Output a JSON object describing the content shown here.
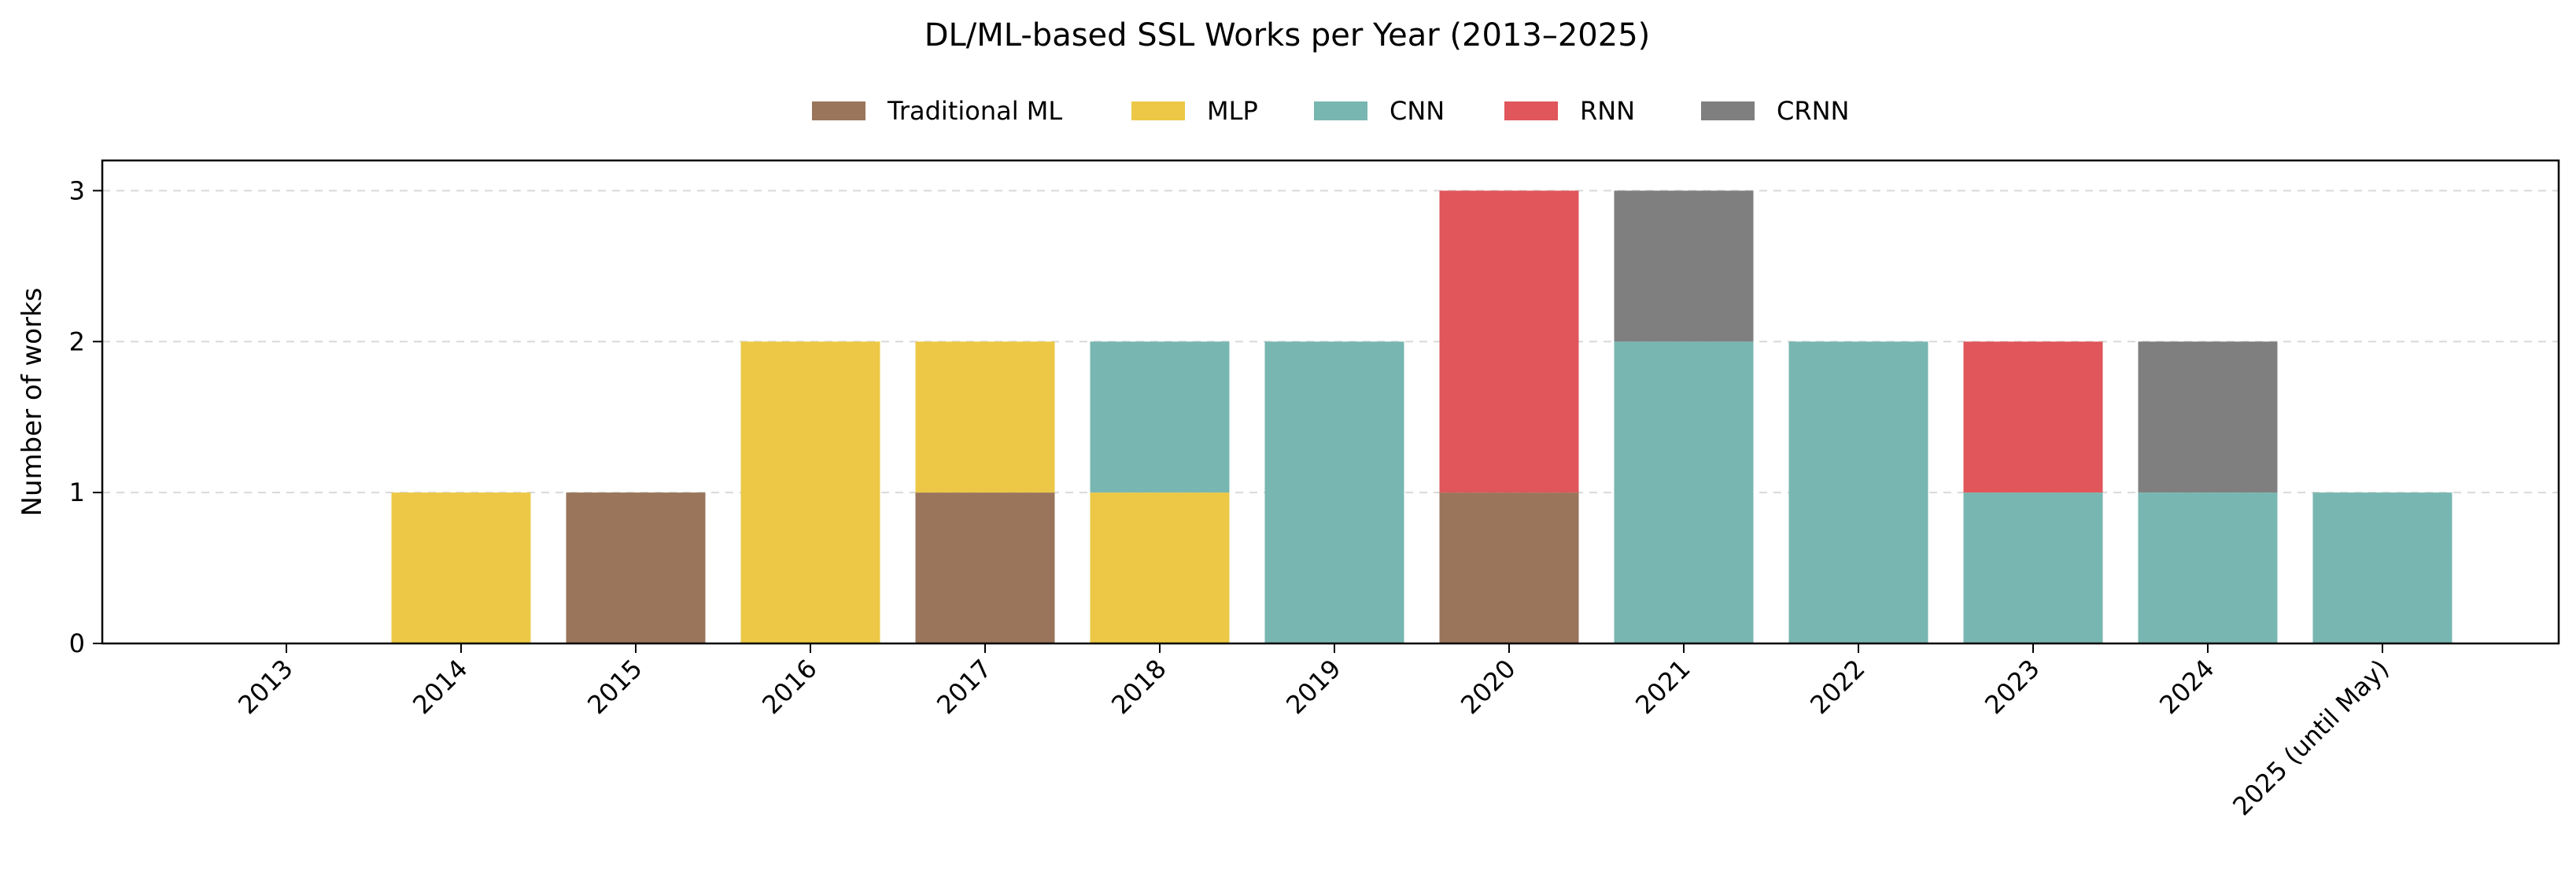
{
  "chart_data": {
    "type": "bar",
    "stacked": true,
    "title": "DL/ML-based SSL Works per Year (2013–2025)",
    "xlabel": "",
    "ylabel": "Number of works",
    "ylim": [
      0,
      3.2
    ],
    "yticks": [
      0,
      1,
      2,
      3
    ],
    "grid": "horizontal dashed",
    "legend_position": "top-center",
    "categories": [
      "2013",
      "2014",
      "2015",
      "2016",
      "2017",
      "2018",
      "2019",
      "2020",
      "2021",
      "2022",
      "2023",
      "2024",
      "2025 (until May)"
    ],
    "series": [
      {
        "name": "Traditional ML",
        "color": "#9a755b",
        "values": [
          0,
          0,
          1,
          0,
          1,
          0,
          0,
          1,
          0,
          0,
          0,
          0,
          0
        ]
      },
      {
        "name": "MLP",
        "color": "#ecc846",
        "values": [
          0,
          1,
          0,
          2,
          1,
          1,
          0,
          0,
          0,
          0,
          0,
          0,
          0
        ]
      },
      {
        "name": "CNN",
        "color": "#78b6b1",
        "values": [
          0,
          0,
          0,
          0,
          0,
          1,
          2,
          0,
          2,
          2,
          1,
          1,
          1
        ]
      },
      {
        "name": "RNN",
        "color": "#e0565a",
        "values": [
          0,
          0,
          0,
          0,
          0,
          0,
          0,
          2,
          0,
          0,
          1,
          0,
          0
        ]
      },
      {
        "name": "CRNN",
        "color": "#7f7f7f",
        "values": [
          0,
          0,
          0,
          0,
          0,
          0,
          0,
          0,
          1,
          0,
          0,
          1,
          0
        ]
      }
    ]
  }
}
